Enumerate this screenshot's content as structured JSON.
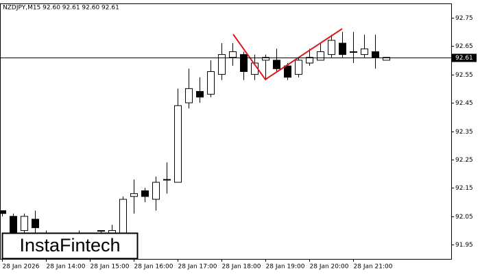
{
  "chart_data": {
    "type": "candlestick",
    "title": "NZDJPY,M15  92.60 92.61 92.60 92.61",
    "categories": [
      "28 Jan 2026",
      null,
      null,
      null,
      "28 Jan 14:00",
      null,
      null,
      null,
      "28 Jan 15:00",
      null,
      null,
      null,
      "28 Jan 16:00",
      null,
      null,
      null,
      "28 Jan 17:00",
      null,
      null,
      null,
      "28 Jan 18:00",
      null,
      null,
      null,
      "28 Jan 19:00",
      null,
      null,
      null,
      "28 Jan 20:00",
      null,
      null,
      null,
      "28 Jan 21:00",
      null,
      null,
      null
    ],
    "open": [
      92.07,
      92.05,
      92.0,
      92.04,
      91.99,
      91.99,
      91.99,
      91.99,
      91.99,
      92.0,
      91.98,
      91.97,
      92.12,
      92.14,
      92.11,
      92.18,
      92.17,
      92.45,
      92.49,
      92.48,
      92.55,
      92.61,
      92.62,
      92.55,
      92.6,
      92.6,
      92.58,
      92.55,
      92.59,
      92.6,
      92.62,
      92.66,
      92.63,
      92.62,
      92.63,
      92.6
    ],
    "high": [
      92.07,
      92.06,
      92.06,
      92.07,
      92.0,
      91.99,
      91.99,
      92.0,
      91.99,
      92.0,
      92.02,
      92.12,
      92.18,
      92.15,
      92.19,
      92.24,
      92.5,
      92.57,
      92.54,
      92.6,
      92.66,
      92.66,
      92.63,
      92.62,
      92.62,
      92.64,
      92.59,
      92.61,
      92.64,
      92.66,
      92.69,
      92.7,
      92.7,
      92.69,
      92.69,
      92.61
    ],
    "low": [
      92.05,
      91.97,
      91.99,
      91.99,
      91.98,
      91.99,
      91.99,
      91.99,
      91.99,
      91.99,
      91.98,
      91.96,
      92.06,
      92.1,
      92.07,
      92.13,
      92.17,
      92.43,
      92.45,
      92.47,
      92.53,
      92.58,
      92.53,
      92.53,
      92.53,
      92.56,
      92.53,
      92.54,
      92.58,
      92.6,
      92.61,
      92.61,
      92.59,
      92.61,
      92.57,
      92.6
    ],
    "close": [
      92.06,
      91.99,
      92.05,
      92.01,
      91.99,
      91.99,
      91.99,
      91.99,
      91.99,
      92.0,
      92.0,
      92.11,
      92.13,
      92.12,
      92.17,
      92.18,
      92.44,
      92.5,
      92.47,
      92.56,
      92.62,
      92.63,
      92.56,
      92.59,
      92.61,
      92.57,
      92.54,
      92.6,
      92.61,
      92.63,
      92.67,
      92.62,
      92.63,
      92.64,
      92.61,
      92.61
    ],
    "up_color": "#ffffff",
    "down_color": "#000000",
    "ylim": [
      91.9,
      92.8
    ],
    "yticks": [
      91.95,
      92.05,
      92.15,
      92.25,
      92.35,
      92.45,
      92.55,
      92.65,
      92.75
    ],
    "current_price": 92.61,
    "logo": "InstaFintech"
  }
}
